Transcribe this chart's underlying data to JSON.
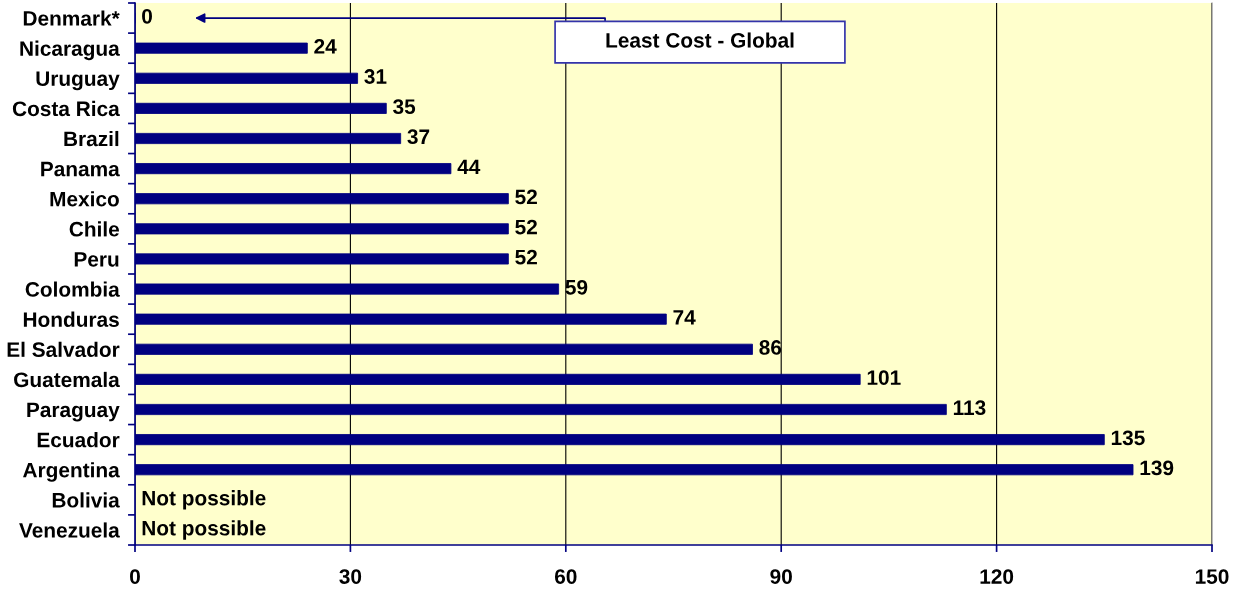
{
  "chart_data": {
    "type": "bar",
    "orientation": "horizontal",
    "categories": [
      "Denmark*",
      "Nicaragua",
      "Uruguay",
      "Costa Rica",
      "Brazil",
      "Panama",
      "Mexico",
      "Chile",
      "Peru",
      "Colombia",
      "Honduras",
      "El Salvador",
      "Guatemala",
      "Paraguay",
      "Ecuador",
      "Argentina",
      "Bolivia",
      "Venezuela"
    ],
    "values": [
      0,
      24,
      31,
      35,
      37,
      44,
      52,
      52,
      52,
      59,
      74,
      86,
      101,
      113,
      135,
      139,
      null,
      null
    ],
    "value_labels": [
      "0",
      "24",
      "31",
      "35",
      "37",
      "44",
      "52",
      "52",
      "52",
      "59",
      "74",
      "86",
      "101",
      "113",
      "135",
      "139",
      "Not possible",
      "Not possible"
    ],
    "color": "#000080",
    "xlim": [
      0,
      150
    ],
    "xticks": [
      0,
      30,
      60,
      90,
      120,
      150
    ],
    "grid": "x",
    "annotations": [
      "Least Cost - Global"
    ]
  }
}
